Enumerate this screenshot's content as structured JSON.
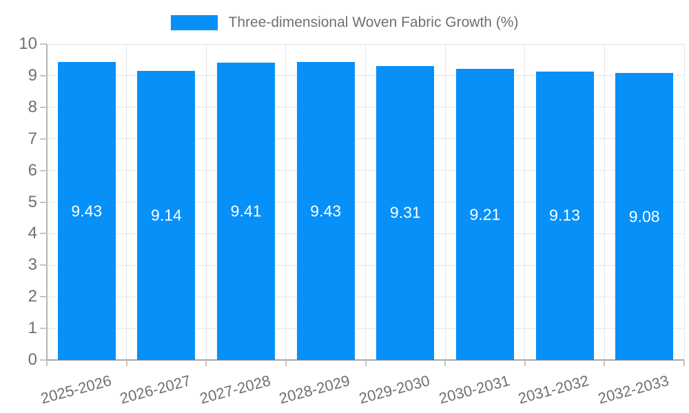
{
  "chart_data": {
    "type": "bar",
    "title": "Three-dimensional Woven Fabric Growth (%)",
    "legend": {
      "label": "Three-dimensional Woven Fabric Growth (%)",
      "position": "top",
      "swatch_color": "#0690f8"
    },
    "categories": [
      "2025-2026",
      "2026-2027",
      "2027-2028",
      "2028-2029",
      "2029-2030",
      "2030-2031",
      "2031-2032",
      "2032-2033"
    ],
    "values": [
      9.43,
      9.14,
      9.41,
      9.43,
      9.31,
      9.21,
      9.13,
      9.08
    ],
    "value_labels": [
      "9.43",
      "9.14",
      "9.41",
      "9.43",
      "9.31",
      "9.21",
      "9.13",
      "9.08"
    ],
    "xlabel": "",
    "ylabel": "",
    "ylim": [
      0,
      10
    ],
    "ytick_step": 1,
    "yticks": [
      0,
      1,
      2,
      3,
      4,
      5,
      6,
      7,
      8,
      9,
      10
    ],
    "grid": true,
    "bar_color": "#0690f8",
    "value_label_color": "#ffffff",
    "text_color": "#707070",
    "grid_color": "#e6e6e6",
    "axis_color": "#a6a6a6"
  }
}
